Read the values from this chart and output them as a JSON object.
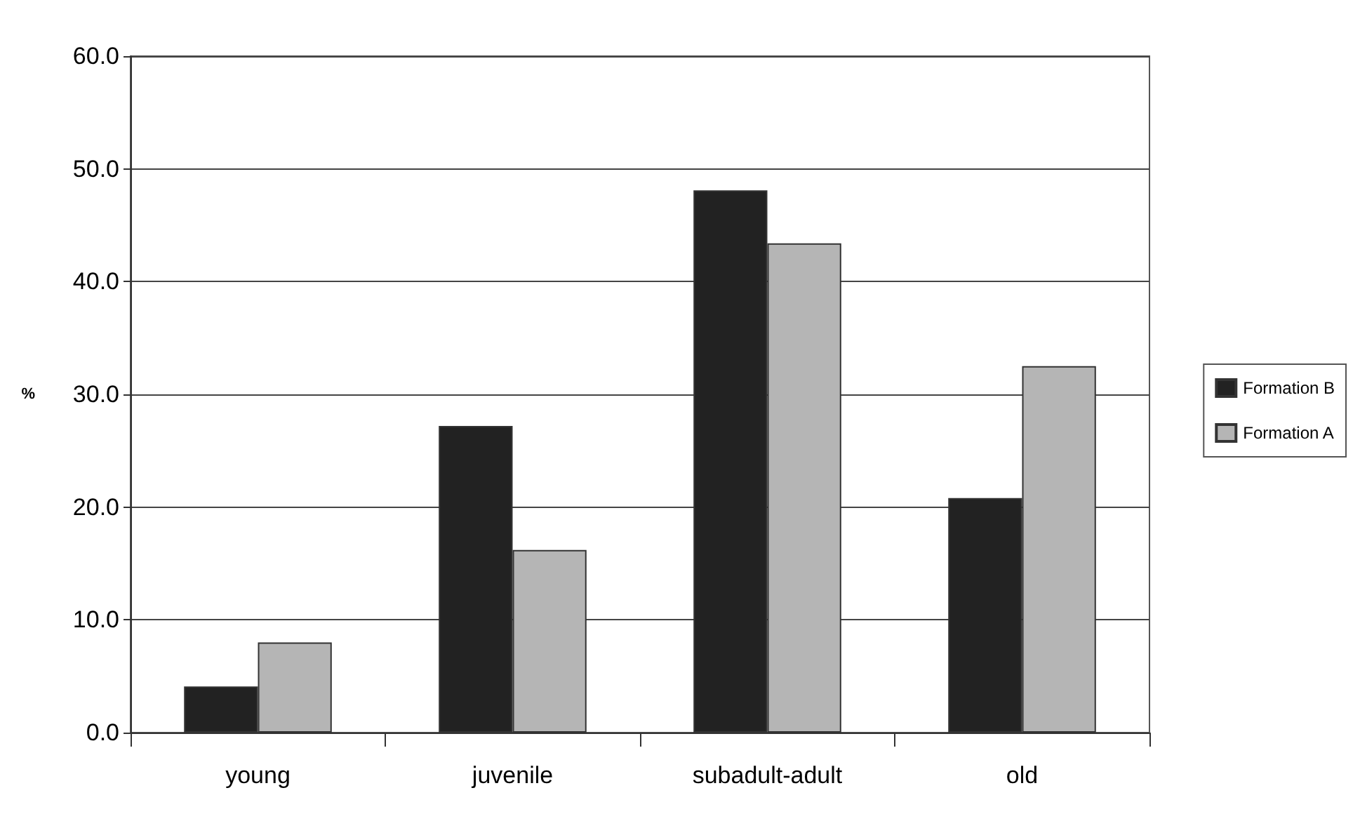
{
  "chart_data": {
    "type": "bar",
    "ylabel": "%",
    "categories": [
      "young",
      "juvenile",
      "subadult-adult",
      "old"
    ],
    "series": [
      {
        "name": "Formation B",
        "color": "#222222",
        "values": [
          4.1,
          27.2,
          48.1,
          20.8
        ]
      },
      {
        "name": "Formation A",
        "color": "#b5b5b5",
        "values": [
          8.0,
          16.2,
          43.4,
          32.5
        ]
      }
    ],
    "ylim": [
      0,
      60
    ],
    "yticks": [
      {
        "value": 0,
        "label": "0.0"
      },
      {
        "value": 10,
        "label": "10.0"
      },
      {
        "value": 20,
        "label": "20.0"
      },
      {
        "value": 30,
        "label": "30.0"
      },
      {
        "value": 40,
        "label": "40.0"
      },
      {
        "value": 50,
        "label": "50.0"
      },
      {
        "value": 60,
        "label": "60.0"
      }
    ],
    "grid": "y",
    "legend": "right"
  }
}
